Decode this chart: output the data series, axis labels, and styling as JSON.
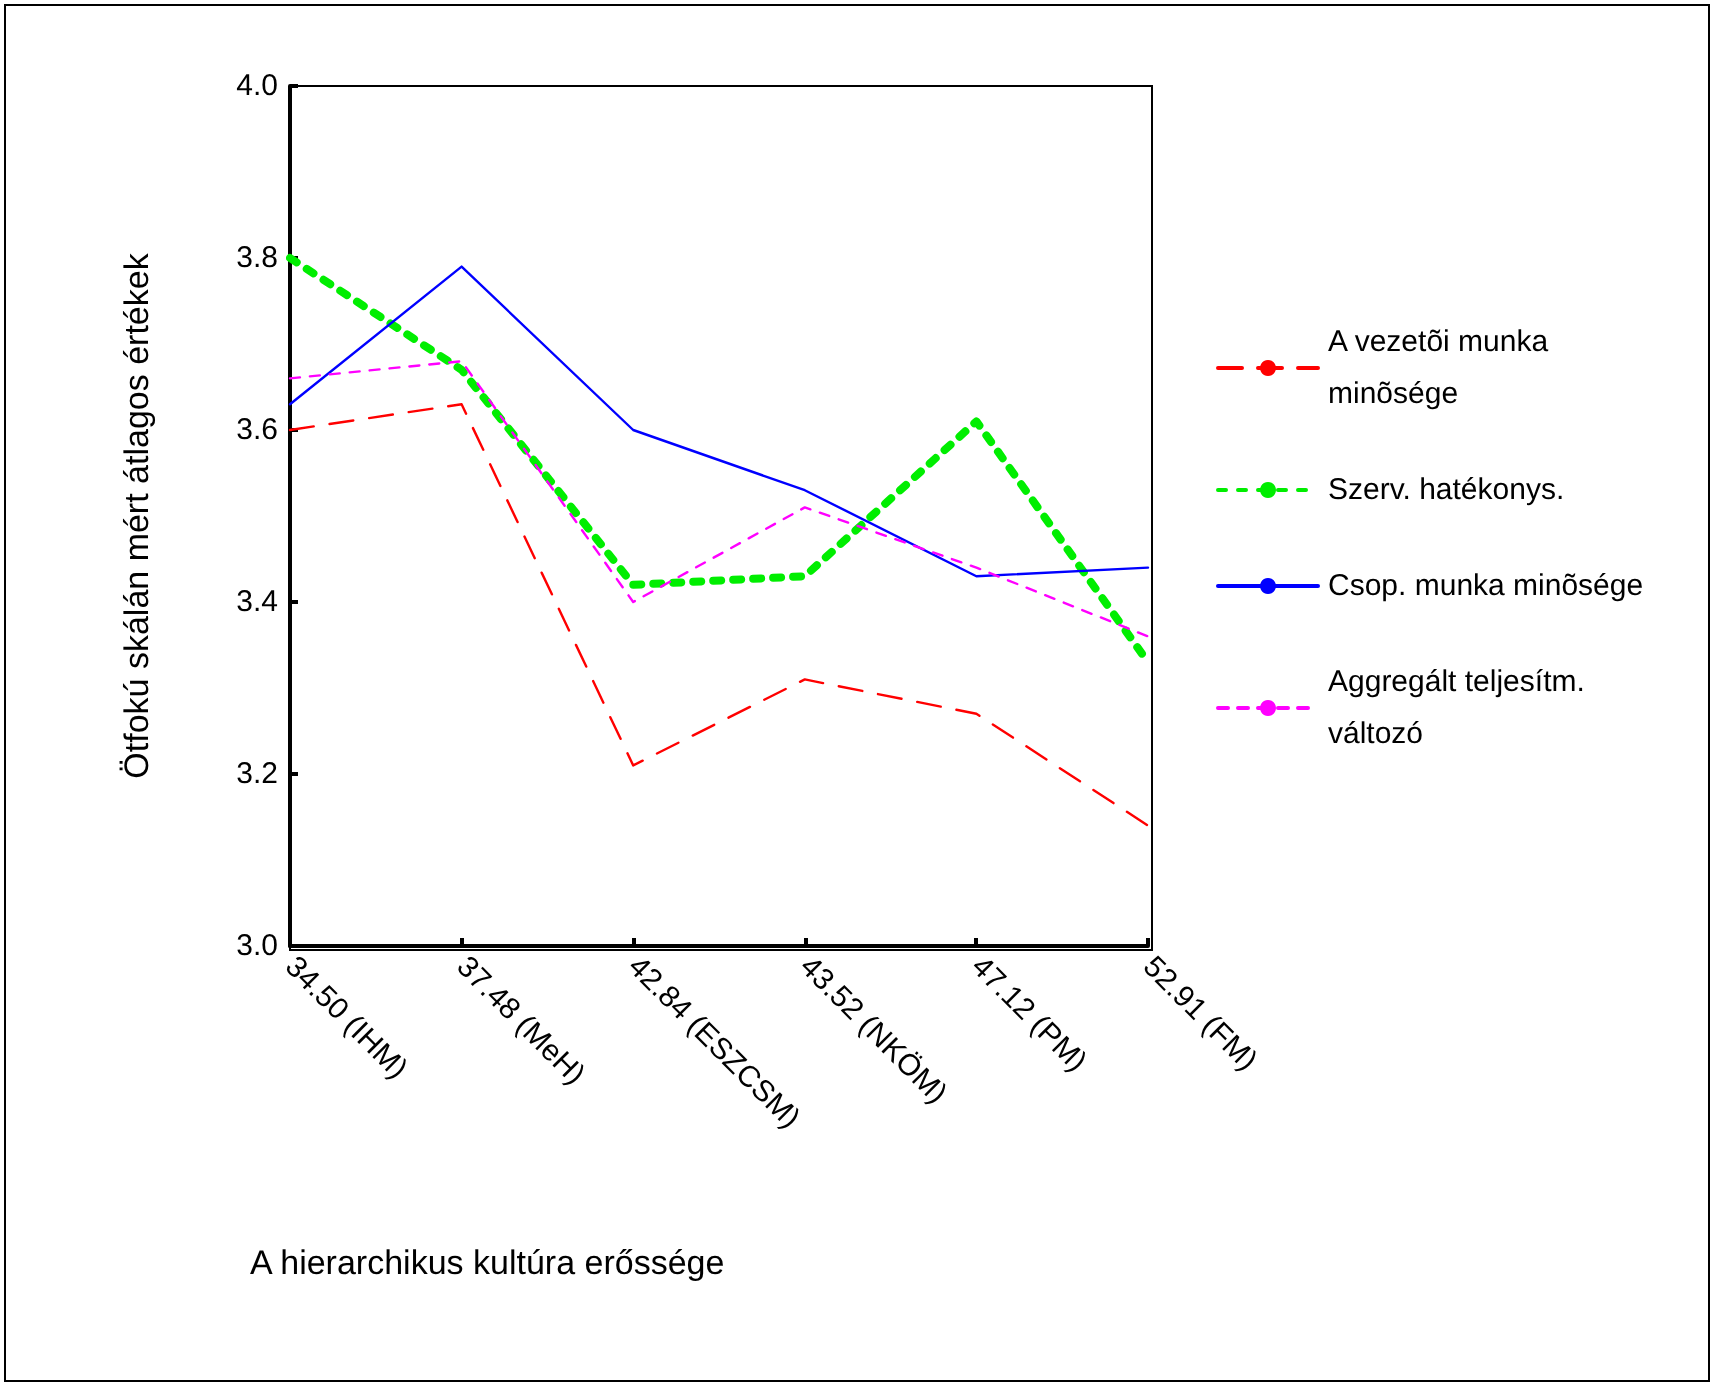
{
  "chart_data": {
    "type": "line",
    "xlabel": "A hierarchikus kultúra erőssége",
    "ylabel": "Ötfokú skálán mért átlagos értékek",
    "categories": [
      "34.50 (IHM)",
      "37.48 (MeH)",
      "42.84 (ESZCSM)",
      "43.52 (NKÖM)",
      "47.12 (PM)",
      "52.91 (FM)"
    ],
    "series": [
      {
        "name": "A vezetõi munka minõsége",
        "color": "#ff0000",
        "line_style": "dashed",
        "values": [
          3.6,
          3.63,
          3.21,
          3.31,
          3.27,
          3.14
        ]
      },
      {
        "name": "Szerv. hatékonys.",
        "color": "#00ee00",
        "line_style": "dotted",
        "values": [
          3.8,
          3.67,
          3.42,
          3.43,
          3.61,
          3.33
        ]
      },
      {
        "name": "Csop. munka minõsége",
        "color": "#0000ff",
        "line_style": "solid",
        "values": [
          3.63,
          3.79,
          3.6,
          3.53,
          3.43,
          3.44
        ]
      },
      {
        "name": "Aggregált teljesítm. változó",
        "color": "#ff00ff",
        "line_style": "dashed",
        "values": [
          3.66,
          3.68,
          3.4,
          3.51,
          3.44,
          3.36
        ]
      }
    ],
    "ylim": [
      3.0,
      4.0
    ],
    "yticks": [
      {
        "value": 3,
        "label": "3.0"
      },
      {
        "value": 3.2,
        "label": "3.2"
      },
      {
        "value": 3.4,
        "label": "3.4"
      },
      {
        "value": 3.6,
        "label": "3.6"
      },
      {
        "value": 3.8,
        "label": "3.8"
      },
      {
        "value": 4,
        "label": "4.0"
      }
    ],
    "grid": false,
    "legend": "right",
    "marker": "none"
  }
}
